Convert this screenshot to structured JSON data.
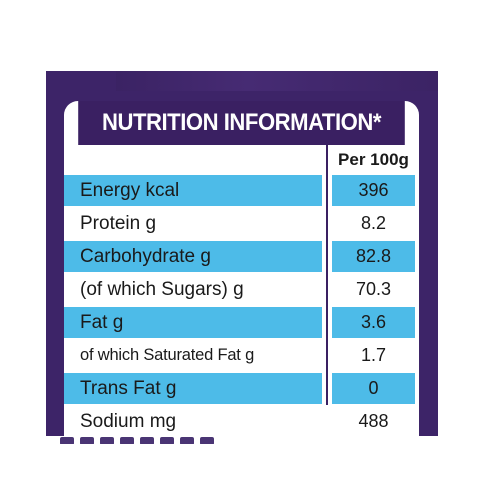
{
  "label": {
    "title": "NUTRITION INFORMATION*",
    "column_header": "Per 100g",
    "rows": [
      {
        "name": "Energy kcal",
        "value": "396",
        "shaded": true
      },
      {
        "name": "Protein g",
        "value": "8.2",
        "shaded": false
      },
      {
        "name": "Carbohydrate g",
        "value": "82.8",
        "shaded": true
      },
      {
        "name": "(of which Sugars) g",
        "value": "70.3",
        "shaded": false
      },
      {
        "name": "Fat g",
        "value": "3.6",
        "shaded": true
      },
      {
        "name": "of which Saturated Fat g",
        "value": "1.7",
        "shaded": false
      },
      {
        "name": "Trans Fat g",
        "value": "0",
        "shaded": true
      },
      {
        "name": "Sodium mg",
        "value": "488",
        "shaded": false
      }
    ]
  },
  "colors": {
    "packaging_purple": "#3d2468",
    "title_bar": "#3a2062",
    "row_highlight": "#4dbbe8",
    "text": "#1a1a1a"
  }
}
